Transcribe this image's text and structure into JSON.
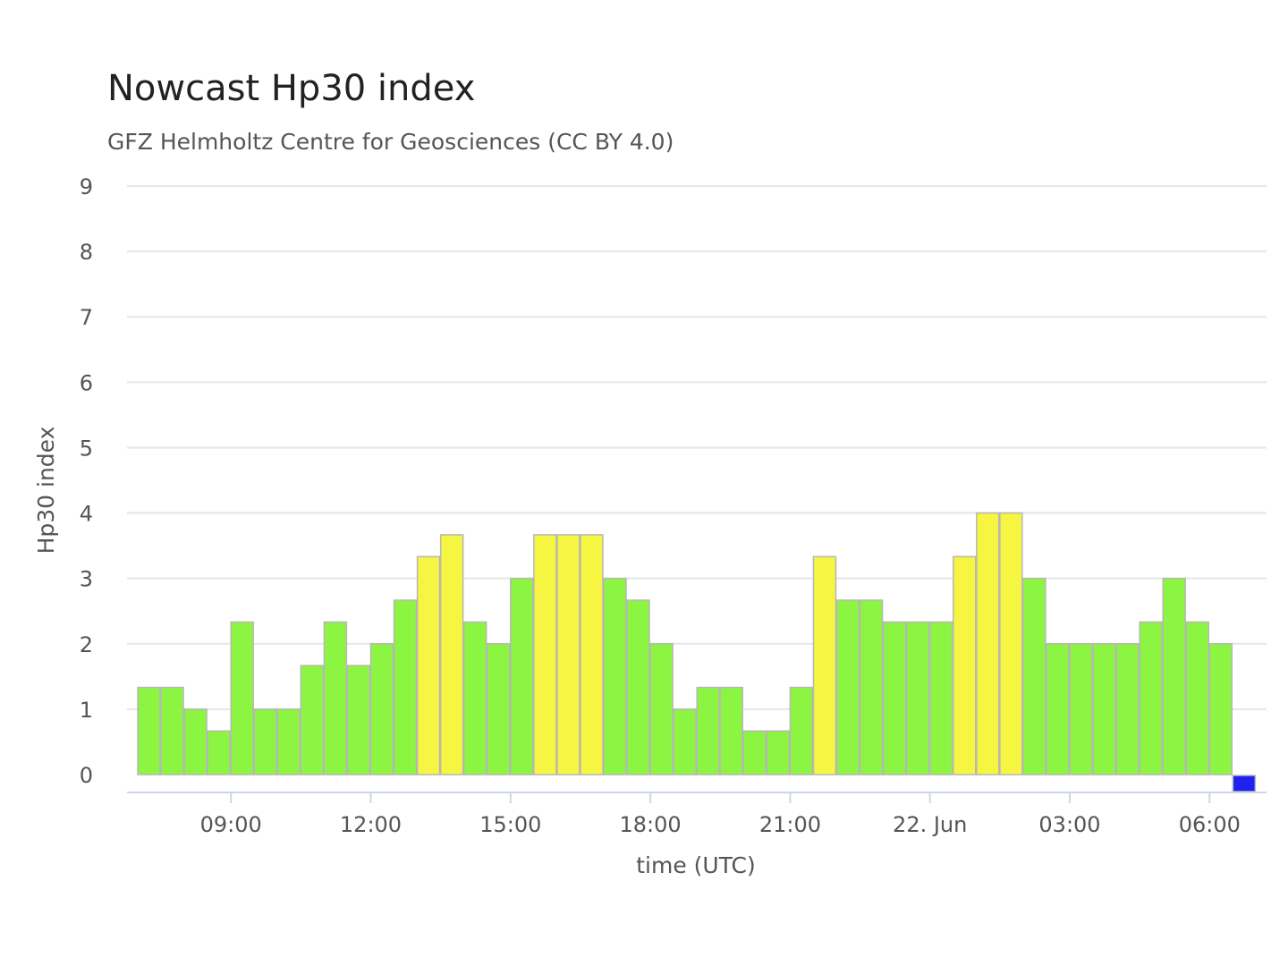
{
  "chart_data": {
    "type": "bar",
    "title": "Nowcast Hp30 index",
    "subtitle": "GFZ Helmholtz Centre for Geosciences (CC BY 4.0)",
    "xlabel": "time (UTC)",
    "ylabel": "Hp30 index",
    "ylim": [
      0,
      9
    ],
    "yticks": [
      0,
      1,
      2,
      3,
      4,
      5,
      6,
      7,
      8,
      9
    ],
    "xticks": [
      {
        "label": "09:00",
        "hour": 9
      },
      {
        "label": "12:00",
        "hour": 12
      },
      {
        "label": "15:00",
        "hour": 15
      },
      {
        "label": "18:00",
        "hour": 18
      },
      {
        "label": "21:00",
        "hour": 21
      },
      {
        "label": "22. Jun",
        "hour": 24
      },
      {
        "label": "03:00",
        "hour": 27
      },
      {
        "label": "06:00",
        "hour": 30
      }
    ],
    "x_start_hour": 7.0,
    "interval_hours": 0.5,
    "grid": true,
    "legend": "none",
    "values": [
      1.333,
      1.333,
      1.0,
      0.667,
      2.333,
      1.0,
      1.0,
      1.667,
      2.333,
      1.667,
      2.0,
      2.667,
      3.333,
      3.667,
      2.333,
      2.0,
      3.0,
      3.667,
      3.667,
      3.667,
      3.0,
      2.667,
      2.0,
      1.0,
      1.333,
      1.333,
      0.667,
      0.667,
      1.333,
      3.333,
      2.667,
      2.667,
      2.333,
      2.333,
      2.333,
      3.333,
      4.0,
      4.0,
      3.0,
      2.0,
      2.0,
      2.0,
      2.0,
      2.333,
      3.0,
      2.333,
      2.0,
      0.0
    ],
    "colors": {
      "low": "#8cf542",
      "moderate": "#f5f542",
      "nowcast": "#2020f0",
      "grid": "#e6e6e6",
      "axis": "#ccd6eb",
      "text": "#555555"
    }
  }
}
